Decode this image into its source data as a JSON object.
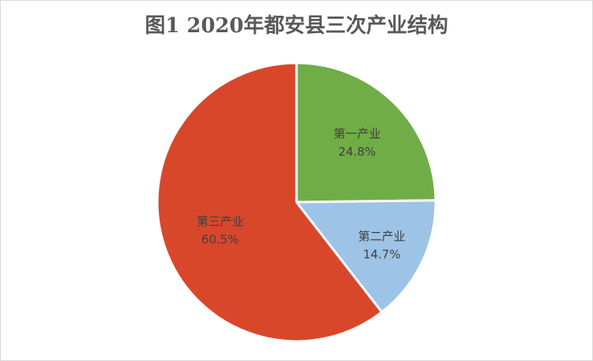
{
  "chart_data": {
    "type": "pie",
    "title": "图1  2020年都安县三次产业结构",
    "slices": [
      {
        "label": "第一产业",
        "value": 24.8,
        "value_label": "24.8%",
        "color": "#70ad47"
      },
      {
        "label": "第二产业",
        "value": 14.7,
        "value_label": "14.7%",
        "color": "#9dc3e6"
      },
      {
        "label": "第三产业",
        "value": 60.5,
        "value_label": "60.5%",
        "color": "#d9472b"
      }
    ],
    "start_angle_deg": 0,
    "direction": "clockwise",
    "legend": "none",
    "data_labels": "inside"
  }
}
